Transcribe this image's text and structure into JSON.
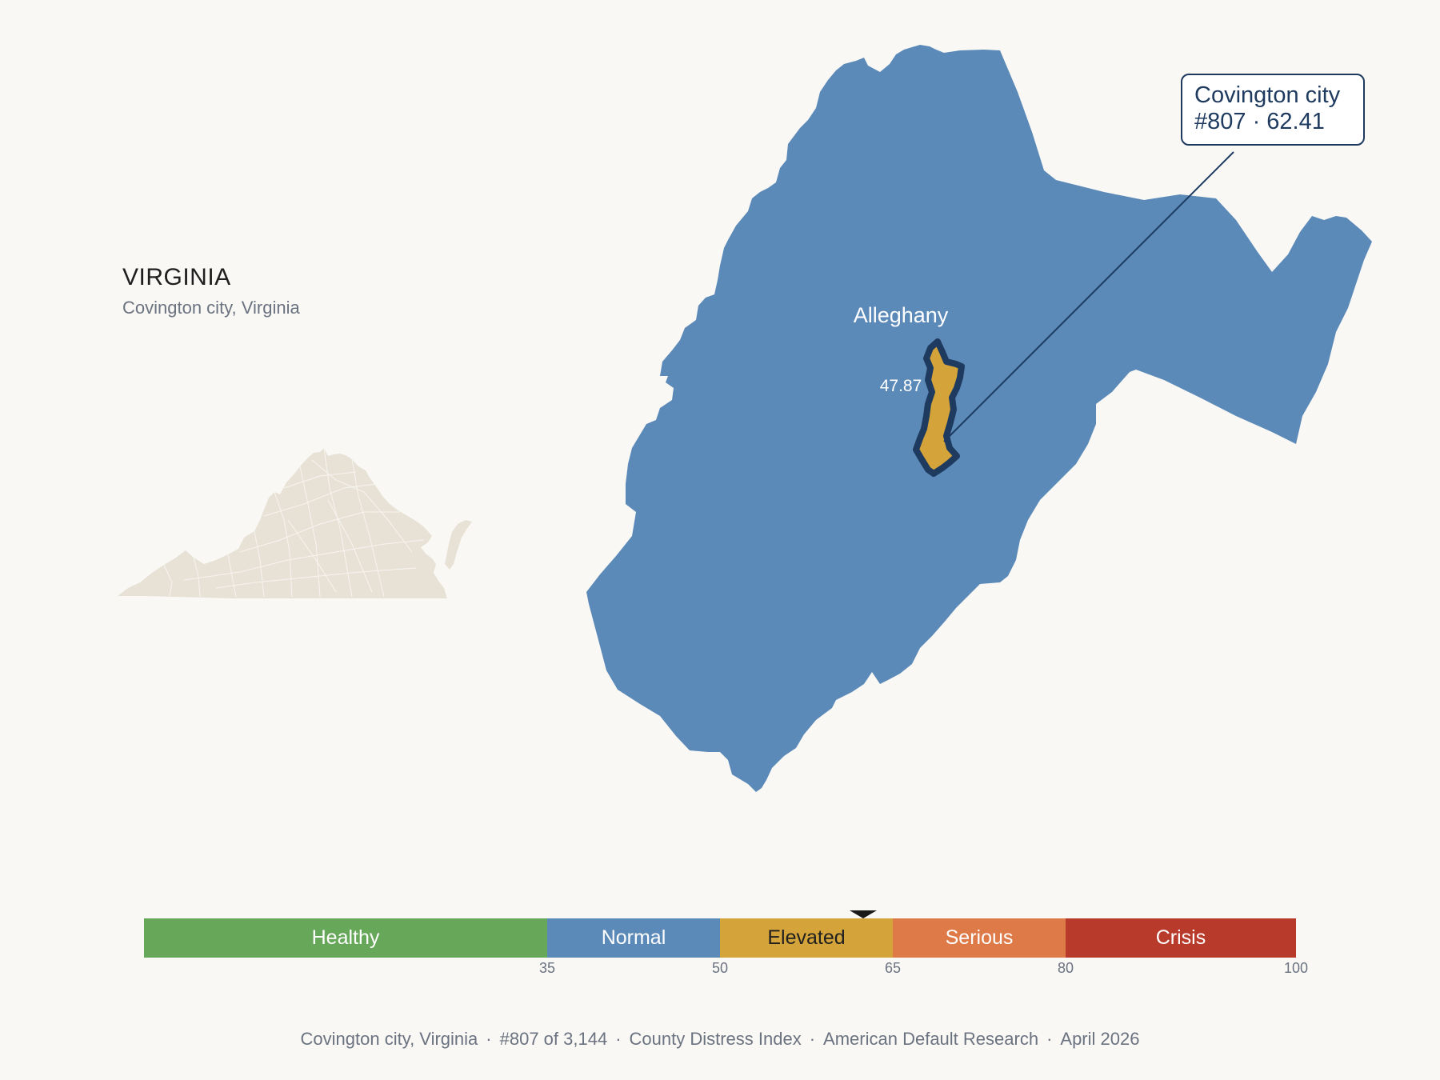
{
  "state": {
    "title": "VIRGINIA",
    "subtitle": "Covington city, Virginia"
  },
  "map": {
    "neighbor_label": "Alleghany",
    "neighbor_value": "47.87",
    "neighbor_color": "#5b89b8",
    "target_color": "#d4a33a",
    "target_outline_color": "#1e3a5f",
    "inset_color": "#e8e2d6",
    "callout": {
      "name": "Covington city",
      "rank_score": "#807 · 62.41"
    }
  },
  "legend": {
    "segments": [
      {
        "label": "Healthy",
        "color": "#67a759",
        "from": 0,
        "to": 35
      },
      {
        "label": "Normal",
        "color": "#5b89b8",
        "from": 35,
        "to": 50
      },
      {
        "label": "Elevated",
        "color": "#d4a33a",
        "from": 50,
        "to": 65
      },
      {
        "label": "Serious",
        "color": "#dd7a47",
        "from": 65,
        "to": 80
      },
      {
        "label": "Crisis",
        "color": "#b83a2b",
        "from": 80,
        "to": 100
      }
    ],
    "ticks": [
      "35",
      "50",
      "65",
      "80",
      "100"
    ],
    "marker_value": 62.41
  },
  "footer": {
    "place": "Covington city, Virginia",
    "rank": "#807 of 3,144",
    "index_name": "County Distress Index",
    "source": "American Default Research",
    "date": "April 2026"
  }
}
